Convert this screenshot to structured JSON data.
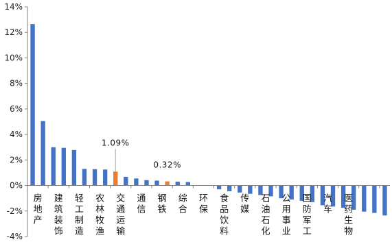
{
  "chart_data": {
    "type": "bar",
    "ylim": [
      -4,
      14
    ],
    "yticks": [
      -4,
      -2,
      0,
      2,
      4,
      6,
      8,
      10,
      12,
      14
    ],
    "ytick_labels": [
      "-4%",
      "-2%",
      "0%",
      "2%",
      "4%",
      "6%",
      "8%",
      "10%",
      "12%",
      "14%"
    ],
    "grid": false,
    "colors": {
      "default": "#4472C4",
      "highlight": "#ED7D31",
      "annotation_line": "#A6A6A6",
      "axis": "#7F7F7F"
    },
    "values": [
      12.65,
      5.05,
      3.0,
      2.95,
      2.78,
      1.3,
      1.28,
      1.25,
      1.09,
      0.68,
      0.55,
      0.42,
      0.38,
      0.32,
      0.3,
      0.27,
      0.0,
      0.0,
      -0.3,
      -0.45,
      -0.55,
      -0.65,
      -0.75,
      -0.85,
      -1.0,
      -1.1,
      -1.2,
      -1.3,
      -1.55,
      -1.65,
      -1.75,
      -1.9,
      -2.05,
      -2.15,
      -2.35
    ],
    "highlight_indices": [
      8,
      13
    ],
    "category_labels": [
      {
        "text": "房地产",
        "index": 0
      },
      {
        "text": "建筑装饰",
        "index": 2
      },
      {
        "text": "轻工制造",
        "index": 4
      },
      {
        "text": "农林牧渔",
        "index": 6
      },
      {
        "text": "交通运输",
        "index": 8
      },
      {
        "text": "通信",
        "index": 10
      },
      {
        "text": "钢铁",
        "index": 12
      },
      {
        "text": "综合",
        "index": 14
      },
      {
        "text": "环保",
        "index": 16
      },
      {
        "text": "食品饮料",
        "index": 18
      },
      {
        "text": "传媒",
        "index": 20
      },
      {
        "text": "石油石化",
        "index": 22
      },
      {
        "text": "公用事业",
        "index": 24
      },
      {
        "text": "国防军工",
        "index": 26
      },
      {
        "text": "汽车",
        "index": 28
      },
      {
        "text": "医药生物",
        "index": 30
      }
    ],
    "annotations": [
      {
        "text": "1.09%",
        "index": 8,
        "value": 1.09
      },
      {
        "text": "0.32%",
        "index": 13,
        "value": 0.32
      }
    ]
  }
}
